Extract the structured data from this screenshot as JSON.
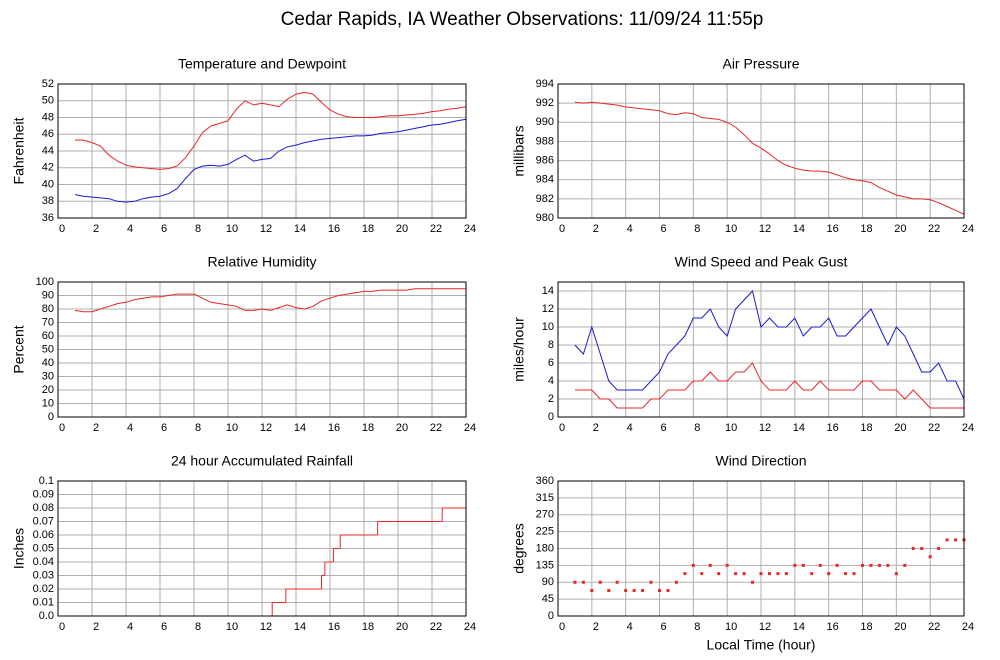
{
  "title": "Cedar Rapids, IA Weather Observations: 11/09/24 11:55p",
  "chart_data": [
    {
      "type": "line",
      "title": "Temperature and Dewpoint",
      "ylabel": "Fahrenheit",
      "x": [
        1,
        1.5,
        2,
        2.5,
        3,
        3.5,
        4,
        4.5,
        5,
        5.5,
        6,
        6.5,
        7,
        7.5,
        8,
        8.5,
        9,
        9.5,
        10,
        10.5,
        11,
        11.5,
        12,
        12.5,
        13,
        13.5,
        14,
        14.5,
        15,
        15.5,
        16,
        16.5,
        17,
        17.5,
        18,
        18.5,
        19,
        19.5,
        20,
        20.5,
        21,
        21.5,
        22,
        22.5,
        23,
        23.5,
        24
      ],
      "series": [
        {
          "color": "#e8262a",
          "values": [
            45.3,
            45.3,
            45,
            44.6,
            43.5,
            42.8,
            42.3,
            42.1,
            42,
            41.9,
            41.8,
            41.9,
            42.2,
            43.2,
            44.6,
            46.2,
            47,
            47.3,
            47.6,
            49,
            50,
            49.5,
            49.7,
            49.5,
            49.3,
            50.2,
            50.8,
            51,
            50.8,
            49.8,
            48.9,
            48.4,
            48.1,
            48,
            48,
            48,
            48.1,
            48.2,
            48.2,
            48.3,
            48.4,
            48.5,
            48.7,
            48.8,
            49,
            49.1,
            49.3
          ]
        },
        {
          "color": "#1a1ad0",
          "values": [
            38.8,
            38.6,
            38.5,
            38.4,
            38.3,
            38,
            37.9,
            38,
            38.3,
            38.5,
            38.6,
            38.9,
            39.5,
            40.7,
            41.8,
            42.2,
            42.3,
            42.2,
            42.4,
            43,
            43.5,
            42.8,
            43,
            43.1,
            44,
            44.5,
            44.7,
            45,
            45.2,
            45.4,
            45.5,
            45.6,
            45.7,
            45.8,
            45.8,
            45.9,
            46.1,
            46.2,
            46.3,
            46.5,
            46.7,
            46.9,
            47.1,
            47.2,
            47.4,
            47.6,
            47.8
          ]
        }
      ],
      "xlim": [
        0,
        24
      ],
      "xticks": [
        0,
        2,
        4,
        6,
        8,
        10,
        12,
        14,
        16,
        18,
        20,
        22,
        24
      ],
      "ylim": [
        36,
        52
      ],
      "yticks": [
        36,
        38,
        40,
        42,
        44,
        46,
        48,
        50,
        52
      ],
      "grid": true
    },
    {
      "type": "line",
      "title": "Air Pressure",
      "ylabel": "millibars",
      "x": [
        1,
        1.5,
        2,
        2.5,
        3,
        3.5,
        4,
        4.5,
        5,
        5.5,
        6,
        6.5,
        7,
        7.5,
        8,
        8.5,
        9,
        9.5,
        10,
        10.5,
        11,
        11.5,
        12,
        12.5,
        13,
        13.5,
        14,
        14.5,
        15,
        15.5,
        16,
        16.5,
        17,
        17.5,
        18,
        18.5,
        19,
        19.5,
        20,
        20.5,
        21,
        21.5,
        22,
        22.5,
        23,
        23.5,
        24
      ],
      "series": [
        {
          "color": "#e8262a",
          "values": [
            992.1,
            992,
            992.1,
            992,
            991.9,
            991.8,
            991.6,
            991.5,
            991.4,
            991.3,
            991.2,
            990.9,
            990.8,
            991,
            990.9,
            990.5,
            990.4,
            990.3,
            990,
            989.5,
            988.7,
            987.8,
            987.3,
            986.7,
            986,
            985.5,
            985.2,
            985,
            984.9,
            984.9,
            984.8,
            984.5,
            984.2,
            984,
            983.9,
            983.7,
            983.2,
            982.8,
            982.4,
            982.2,
            982,
            982,
            981.9,
            981.6,
            981.2,
            980.8,
            980.4
          ]
        }
      ],
      "xlim": [
        0,
        24
      ],
      "xticks": [
        0,
        2,
        4,
        6,
        8,
        10,
        12,
        14,
        16,
        18,
        20,
        22,
        24
      ],
      "ylim": [
        980,
        994
      ],
      "yticks": [
        980,
        982,
        984,
        986,
        988,
        990,
        992,
        994
      ],
      "grid": true
    },
    {
      "type": "line",
      "title": "Relative Humidity",
      "ylabel": "Percent",
      "x": [
        1,
        1.5,
        2,
        2.5,
        3,
        3.5,
        4,
        4.5,
        5,
        5.5,
        6,
        6.5,
        7,
        7.5,
        8,
        8.5,
        9,
        9.5,
        10,
        10.5,
        11,
        11.5,
        12,
        12.5,
        13,
        13.5,
        14,
        14.5,
        15,
        15.5,
        16,
        16.5,
        17,
        17.5,
        18,
        18.5,
        19,
        19.5,
        20,
        20.5,
        21,
        21.5,
        22,
        22.5,
        23,
        23.5,
        24
      ],
      "series": [
        {
          "color": "#e8262a",
          "values": [
            79,
            78,
            78,
            80,
            82,
            84,
            85,
            87,
            88,
            89,
            89,
            90,
            91,
            91,
            91,
            88,
            85,
            84,
            83,
            82,
            79,
            79,
            80,
            79,
            81,
            83,
            81,
            80,
            82,
            86,
            88,
            90,
            91,
            92,
            93,
            93,
            94,
            94,
            94,
            94,
            95,
            95,
            95,
            95,
            95,
            95,
            95
          ]
        }
      ],
      "xlim": [
        0,
        24
      ],
      "xticks": [
        0,
        2,
        4,
        6,
        8,
        10,
        12,
        14,
        16,
        18,
        20,
        22,
        24
      ],
      "ylim": [
        0,
        100
      ],
      "yticks": [
        0,
        10,
        20,
        30,
        40,
        50,
        60,
        70,
        80,
        90,
        100
      ],
      "grid": true
    },
    {
      "type": "line",
      "title": "Wind Speed and Peak Gust",
      "ylabel": "miles/hour",
      "x": [
        1,
        1.5,
        2,
        2.5,
        3,
        3.5,
        4,
        4.5,
        5,
        5.5,
        6,
        6.5,
        7,
        7.5,
        8,
        8.5,
        9,
        9.5,
        10,
        10.5,
        11,
        11.5,
        12,
        12.5,
        13,
        13.5,
        14,
        14.5,
        15,
        15.5,
        16,
        16.5,
        17,
        17.5,
        18,
        18.5,
        19,
        19.5,
        20,
        20.5,
        21,
        21.5,
        22,
        22.5,
        23,
        23.5,
        24
      ],
      "series": [
        {
          "color": "#1a1ad0",
          "values": [
            8,
            7,
            10,
            7,
            4,
            3,
            3,
            3,
            3,
            4,
            5,
            7,
            8,
            9,
            11,
            11,
            12,
            10,
            9,
            12,
            13,
            14,
            10,
            11,
            10,
            10,
            11,
            9,
            10,
            10,
            11,
            9,
            9,
            10,
            11,
            12,
            10,
            8,
            10,
            9,
            7,
            5,
            5,
            6,
            4,
            4,
            2
          ]
        },
        {
          "color": "#e8262a",
          "values": [
            3,
            3,
            3,
            2,
            2,
            1,
            1,
            1,
            1,
            2,
            2,
            3,
            3,
            3,
            4,
            4,
            5,
            4,
            4,
            5,
            5,
            6,
            4,
            3,
            3,
            3,
            4,
            3,
            3,
            4,
            3,
            3,
            3,
            3,
            4,
            4,
            3,
            3,
            3,
            2,
            3,
            2,
            1,
            1,
            1,
            1,
            1
          ]
        }
      ],
      "xlim": [
        0,
        24
      ],
      "xticks": [
        0,
        2,
        4,
        6,
        8,
        10,
        12,
        14,
        16,
        18,
        20,
        22,
        24
      ],
      "ylim": [
        0,
        15
      ],
      "yticks": [
        0,
        2,
        4,
        6,
        8,
        10,
        12,
        14
      ],
      "grid": true
    },
    {
      "type": "step",
      "title": "24 hour Accumulated Rainfall",
      "ylabel": "Inches",
      "x": [
        1,
        12.6,
        13.4,
        15.5,
        15.7,
        16.2,
        16.6,
        18.8,
        22.6
      ],
      "values": [
        0,
        0.01,
        0.02,
        0.03,
        0.04,
        0.05,
        0.06,
        0.07,
        0.08
      ],
      "color": "#e8262a",
      "xlim": [
        0,
        24
      ],
      "xticks": [
        0,
        2,
        4,
        6,
        8,
        10,
        12,
        14,
        16,
        18,
        20,
        22,
        24
      ],
      "ylim": [
        0,
        0.1
      ],
      "yticks": [
        {
          "value": 0,
          "label": "0.0"
        },
        0.01,
        0.02,
        0.03,
        0.04,
        0.05,
        0.06,
        0.07,
        0.08,
        0.09,
        0.1
      ],
      "grid": true
    },
    {
      "type": "scatter",
      "title": "Wind Direction",
      "ylabel": "degrees",
      "xlabel": "Local Time (hour)",
      "x": [
        1,
        1.5,
        2,
        2.5,
        3,
        3.5,
        4,
        4.5,
        5,
        5.5,
        6,
        6.5,
        7,
        7.5,
        8,
        8.5,
        9,
        9.5,
        10,
        10.5,
        11,
        11.5,
        12,
        12.5,
        13,
        13.5,
        14,
        14.5,
        15,
        15.5,
        16,
        16.5,
        17,
        17.5,
        18,
        18.5,
        19,
        19.5,
        20,
        20.5,
        21,
        21.5,
        22,
        22.5,
        23,
        23.5,
        24
      ],
      "values": [
        90,
        90,
        68,
        90,
        68,
        90,
        68,
        68,
        68,
        90,
        68,
        68,
        90,
        113,
        135,
        113,
        135,
        113,
        135,
        113,
        113,
        90,
        113,
        113,
        113,
        113,
        135,
        135,
        113,
        135,
        113,
        135,
        113,
        113,
        135,
        135,
        135,
        135,
        113,
        135,
        180,
        180,
        158,
        180,
        203,
        203,
        203
      ],
      "color": "#e8262a",
      "xlim": [
        0,
        24
      ],
      "xticks": [
        0,
        2,
        4,
        6,
        8,
        10,
        12,
        14,
        16,
        18,
        20,
        22,
        24
      ],
      "ylim": [
        0,
        360
      ],
      "yticks": [
        0,
        45,
        90,
        135,
        180,
        225,
        270,
        315,
        360
      ],
      "grid": true
    }
  ]
}
